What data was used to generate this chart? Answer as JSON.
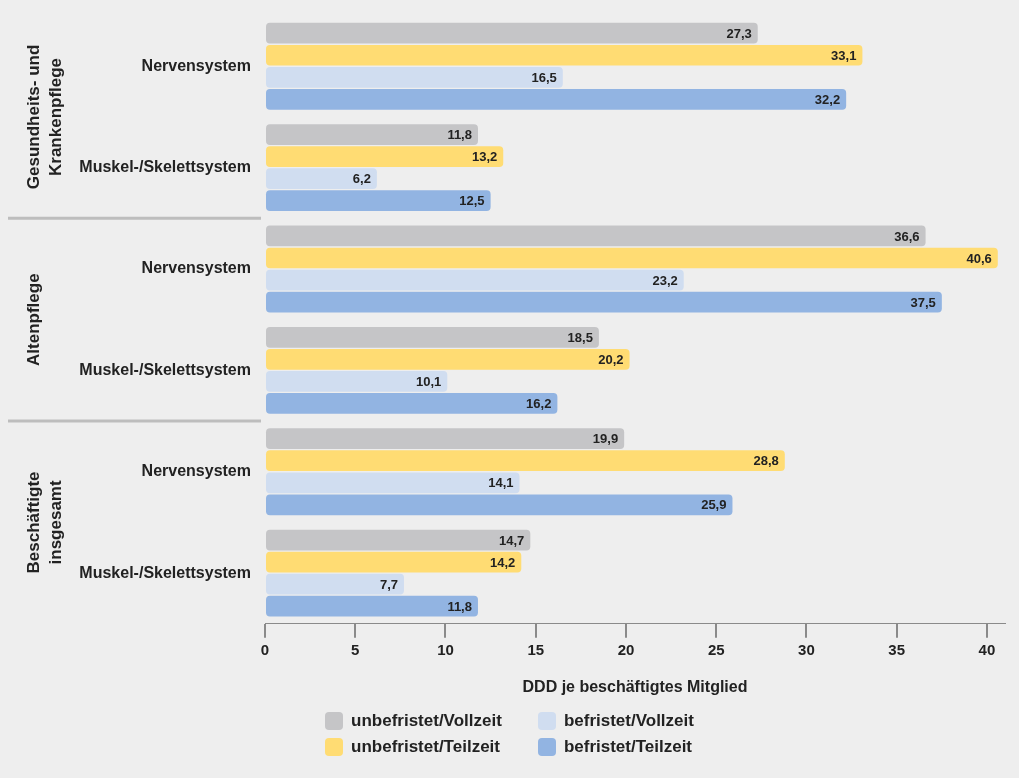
{
  "chart_data": {
    "type": "bar",
    "orientation": "horizontal",
    "xlabel": "DDD je beschäftigtes Mitglied",
    "categories": [
      "Nervensystem",
      "Muskel-/Skelettsystem",
      "Nervensystem",
      "Muskel-/Skelettsystem",
      "Nervensystem",
      "Muskel-/Skelettsystem"
    ],
    "annotations": [
      "Gesundheits- und Krankenpflege",
      "Altenpflege",
      "Beschäftigte insgesamt"
    ],
    "xlim": [
      0,
      41
    ],
    "xticks": [
      0,
      5,
      10,
      15,
      20,
      25,
      30,
      35,
      40
    ],
    "legend": "bottom",
    "series": [
      {
        "name": "unbefristet/Vollzeit",
        "color": "#c5c5c7",
        "values": [
          27.3,
          11.8,
          36.6,
          18.5,
          19.9,
          14.7
        ],
        "value_labels": [
          "27,3",
          "11,8",
          "36,6",
          "18,5",
          "19,9",
          "14,7"
        ]
      },
      {
        "name": "unbefristet/Teilzeit",
        "color": "#ffdc73",
        "values": [
          33.1,
          13.2,
          40.6,
          20.2,
          28.8,
          14.2
        ],
        "value_labels": [
          "33,1",
          "13,2",
          "40,6",
          "20,2",
          "28,8",
          "14,2"
        ]
      },
      {
        "name": "befristet/Vollzeit",
        "color": "#d0ddf0",
        "values": [
          16.5,
          6.2,
          23.2,
          10.1,
          14.1,
          7.7
        ],
        "value_labels": [
          "16,5",
          "6,2",
          "23,2",
          "10,1",
          "14,1",
          "7,7"
        ]
      },
      {
        "name": "befristet/Teilzeit",
        "color": "#92b4e2",
        "values": [
          32.2,
          12.5,
          37.5,
          16.2,
          25.9,
          11.8
        ],
        "value_labels": [
          "32,2",
          "12,5",
          "37,5",
          "16,2",
          "25,9",
          "11,8"
        ]
      }
    ]
  }
}
